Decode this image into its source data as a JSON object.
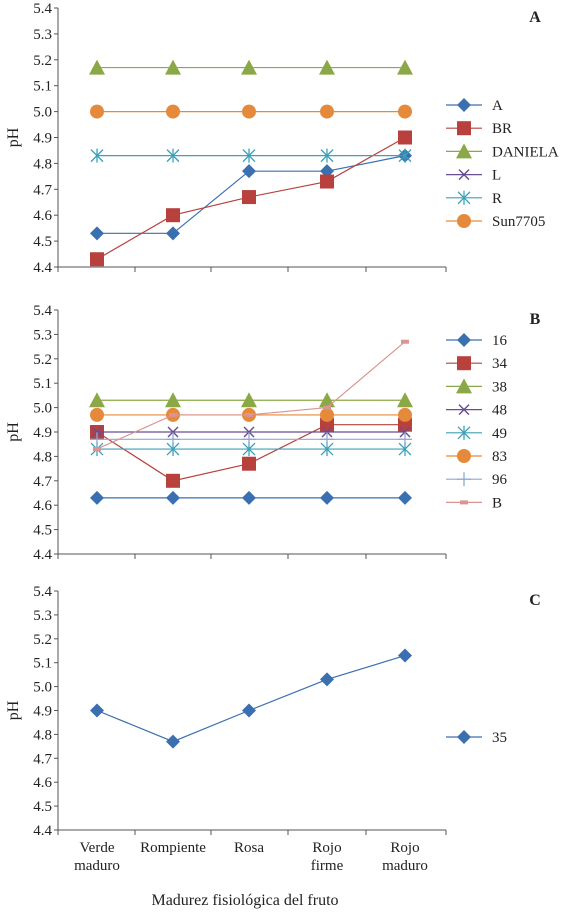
{
  "xlabel": "Madurez fisiológica del fruto",
  "categories": [
    [
      "Verde",
      "maduro"
    ],
    [
      "Rompiente"
    ],
    [
      "Rosa"
    ],
    [
      "Rojo",
      "firme"
    ],
    [
      "Rojo",
      "maduro"
    ]
  ],
  "chart_data": [
    {
      "type": "line",
      "panel": "A",
      "ylabel": "pH",
      "ylim": [
        4.4,
        5.4
      ],
      "yticks": [
        "4.4",
        "4.5",
        "4.6",
        "4.7",
        "4.8",
        "4.9",
        "5.0",
        "5.1",
        "5.2",
        "5.3",
        "5.4"
      ],
      "legend": "right",
      "series": [
        {
          "name": "A",
          "color": "#3a6fb0",
          "marker": "diamond",
          "values": [
            4.53,
            4.53,
            4.77,
            4.77,
            4.83
          ]
        },
        {
          "name": "BR",
          "color": "#b8413d",
          "marker": "square",
          "values": [
            4.43,
            4.6,
            4.67,
            4.73,
            4.9
          ]
        },
        {
          "name": "DANIELA",
          "color": "#8aa845",
          "marker": "triangle",
          "values": [
            5.17,
            5.17,
            5.17,
            5.17,
            5.17
          ]
        },
        {
          "name": "L",
          "color": "#6a4d8f",
          "marker": "x",
          "values": []
        },
        {
          "name": "R",
          "color": "#3ba1b8",
          "marker": "star",
          "values": [
            4.83,
            4.83,
            4.83,
            4.83,
            4.83
          ]
        },
        {
          "name": "Sun7705",
          "color": "#e58a3a",
          "marker": "circle",
          "values": [
            5.0,
            5.0,
            5.0,
            5.0,
            5.0
          ]
        }
      ]
    },
    {
      "type": "line",
      "panel": "B",
      "ylabel": "pH",
      "ylim": [
        4.4,
        5.4
      ],
      "yticks": [
        "4.4",
        "4.5",
        "4.6",
        "4.7",
        "4.8",
        "4.9",
        "5.0",
        "5.1",
        "5.2",
        "5.3",
        "5.4"
      ],
      "legend": "right",
      "series": [
        {
          "name": "16",
          "color": "#3a6fb0",
          "marker": "diamond",
          "values": [
            4.63,
            4.63,
            4.63,
            4.63,
            4.63
          ]
        },
        {
          "name": "34",
          "color": "#b8413d",
          "marker": "square",
          "values": [
            4.9,
            4.7,
            4.77,
            4.93,
            4.93
          ]
        },
        {
          "name": "38",
          "color": "#8aa845",
          "marker": "triangle",
          "values": [
            5.03,
            5.03,
            5.03,
            5.03,
            5.03
          ]
        },
        {
          "name": "48",
          "color": "#6a4d8f",
          "marker": "x",
          "values": [
            4.9,
            4.9,
            4.9,
            4.9,
            4.9
          ]
        },
        {
          "name": "49",
          "color": "#3ba1b8",
          "marker": "star",
          "values": [
            4.83,
            4.83,
            4.83,
            4.83,
            4.83
          ]
        },
        {
          "name": "83",
          "color": "#e58a3a",
          "marker": "circle",
          "values": [
            4.97,
            4.97,
            4.97,
            4.97,
            4.97
          ]
        },
        {
          "name": "96",
          "color": "#8fa9d4",
          "marker": "plus",
          "values": [
            4.87,
            4.87,
            4.87,
            4.87,
            4.87
          ]
        },
        {
          "name": "B",
          "color": "#d99591",
          "marker": "dash",
          "values": [
            4.83,
            4.97,
            4.97,
            5.0,
            5.27
          ]
        }
      ]
    },
    {
      "type": "line",
      "panel": "C",
      "ylabel": "pH",
      "ylim": [
        4.4,
        5.4
      ],
      "yticks": [
        "4.4",
        "4.5",
        "4.6",
        "4.7",
        "4.8",
        "4.9",
        "5.0",
        "5.1",
        "5.2",
        "5.3",
        "5.4"
      ],
      "legend": "right",
      "series": [
        {
          "name": "35",
          "color": "#3a6fb0",
          "marker": "diamond",
          "values": [
            4.9,
            4.77,
            4.9,
            5.03,
            5.13
          ]
        }
      ]
    }
  ]
}
